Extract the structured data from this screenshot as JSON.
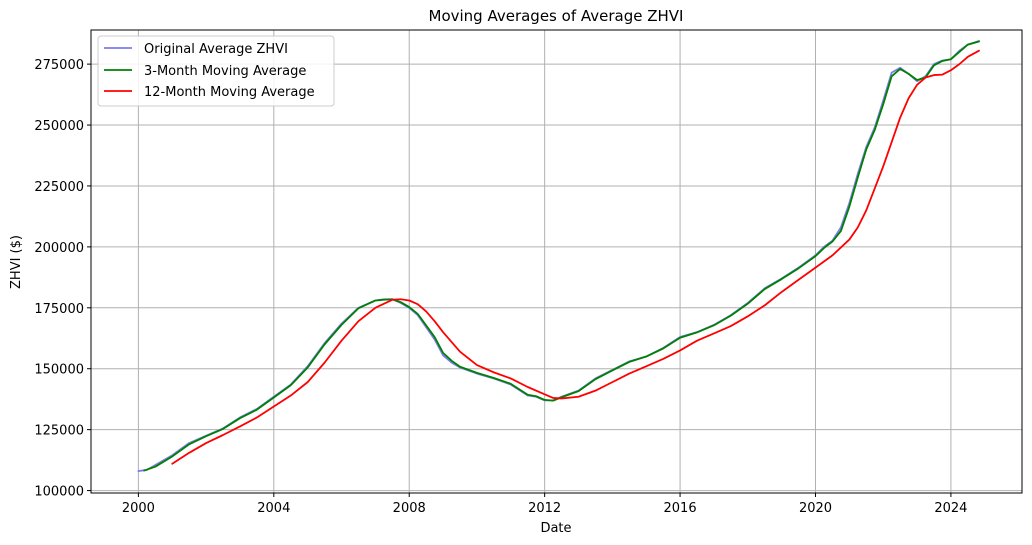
{
  "chart_data": {
    "type": "line",
    "title": "Moving Averages of Average ZHVI",
    "xlabel": "Date",
    "ylabel": "ZHVI ($)",
    "xlim": [
      1998.6,
      2026.1
    ],
    "ylim": [
      99000,
      289000
    ],
    "xticks": [
      2000,
      2004,
      2008,
      2012,
      2016,
      2020,
      2024
    ],
    "yticks": [
      100000,
      125000,
      150000,
      175000,
      200000,
      225000,
      250000,
      275000
    ],
    "grid": true,
    "legend_position": "top-left",
    "series": [
      {
        "name": "Original Average ZHVI",
        "color": "#7b7bef",
        "x": [
          2000.0,
          2000.25,
          2000.5,
          2001.0,
          2001.5,
          2002.0,
          2002.5,
          2003.0,
          2003.5,
          2004.0,
          2004.5,
          2005.0,
          2005.5,
          2006.0,
          2006.5,
          2007.0,
          2007.25,
          2007.5,
          2007.75,
          2008.0,
          2008.25,
          2008.5,
          2008.75,
          2009.0,
          2009.25,
          2009.5,
          2010.0,
          2010.5,
          2011.0,
          2011.5,
          2011.75,
          2012.0,
          2012.25,
          2012.5,
          2013.0,
          2013.5,
          2014.0,
          2014.5,
          2015.0,
          2015.5,
          2016.0,
          2016.5,
          2017.0,
          2017.5,
          2018.0,
          2018.5,
          2019.0,
          2019.5,
          2020.0,
          2020.25,
          2020.5,
          2020.75,
          2021.0,
          2021.25,
          2021.5,
          2021.75,
          2022.0,
          2022.25,
          2022.5,
          2022.75,
          2023.0,
          2023.25,
          2023.5,
          2023.75,
          2024.0,
          2024.25,
          2024.5,
          2024.83
        ],
        "values": [
          108000,
          108500,
          110500,
          114500,
          119500,
          122500,
          125500,
          130000,
          133500,
          138500,
          143500,
          151000,
          160500,
          168500,
          175000,
          178000,
          178500,
          178500,
          177000,
          175000,
          172000,
          167000,
          162000,
          155500,
          152500,
          150500,
          148000,
          146000,
          143500,
          139000,
          138500,
          137000,
          137000,
          138500,
          141000,
          146000,
          149500,
          153000,
          155000,
          158500,
          163000,
          165000,
          168000,
          172000,
          177000,
          183000,
          187000,
          191500,
          196500,
          200000,
          202500,
          208000,
          218000,
          230000,
          241000,
          249000,
          260000,
          271500,
          273500,
          271000,
          268000,
          270000,
          275000,
          276500,
          277000,
          280500,
          283000,
          284500
        ]
      },
      {
        "name": "3-Month Moving Average",
        "color": "#008000",
        "x": [
          2000.17,
          2000.5,
          2001.0,
          2001.5,
          2002.0,
          2002.5,
          2003.0,
          2003.5,
          2004.0,
          2004.5,
          2005.0,
          2005.5,
          2006.0,
          2006.5,
          2007.0,
          2007.25,
          2007.5,
          2007.75,
          2008.0,
          2008.25,
          2008.5,
          2008.75,
          2009.0,
          2009.25,
          2009.5,
          2010.0,
          2010.5,
          2011.0,
          2011.5,
          2011.75,
          2012.0,
          2012.25,
          2012.5,
          2013.0,
          2013.5,
          2014.0,
          2014.5,
          2015.0,
          2015.5,
          2016.0,
          2016.5,
          2017.0,
          2017.5,
          2018.0,
          2018.5,
          2019.0,
          2019.5,
          2020.0,
          2020.25,
          2020.5,
          2020.75,
          2021.0,
          2021.25,
          2021.5,
          2021.75,
          2022.0,
          2022.25,
          2022.5,
          2022.75,
          2023.0,
          2023.25,
          2023.5,
          2023.75,
          2024.0,
          2024.25,
          2024.5,
          2024.83
        ],
        "values": [
          108200,
          109800,
          114000,
          119000,
          122300,
          125300,
          129700,
          133200,
          138200,
          143200,
          150500,
          160000,
          168000,
          174800,
          178000,
          178300,
          178500,
          177300,
          175300,
          172500,
          167800,
          163000,
          156500,
          153300,
          150800,
          148300,
          146200,
          143800,
          139300,
          138700,
          137200,
          136900,
          138300,
          140800,
          145700,
          149300,
          152800,
          155000,
          158300,
          162700,
          164900,
          167800,
          171800,
          176700,
          182700,
          186800,
          191200,
          196200,
          199500,
          202200,
          206500,
          216500,
          228500,
          240000,
          248000,
          258500,
          270000,
          273000,
          271000,
          268500,
          269500,
          274500,
          276300,
          277000,
          280000,
          283000,
          284300
        ]
      },
      {
        "name": "12-Month Moving Average",
        "color": "#ff0000",
        "x": [
          2001.0,
          2001.5,
          2002.0,
          2002.5,
          2003.0,
          2003.5,
          2004.0,
          2004.5,
          2005.0,
          2005.5,
          2006.0,
          2006.5,
          2007.0,
          2007.5,
          2007.75,
          2008.0,
          2008.25,
          2008.5,
          2008.75,
          2009.0,
          2009.5,
          2010.0,
          2010.5,
          2011.0,
          2011.5,
          2012.0,
          2012.25,
          2012.5,
          2013.0,
          2013.5,
          2014.0,
          2014.5,
          2015.0,
          2015.5,
          2016.0,
          2016.5,
          2017.0,
          2017.5,
          2018.0,
          2018.5,
          2019.0,
          2019.5,
          2020.0,
          2020.5,
          2021.0,
          2021.25,
          2021.5,
          2021.75,
          2022.0,
          2022.25,
          2022.5,
          2022.75,
          2023.0,
          2023.25,
          2023.5,
          2023.75,
          2024.0,
          2024.25,
          2024.5,
          2024.83
        ],
        "values": [
          111000,
          115500,
          119500,
          122800,
          126300,
          130000,
          134500,
          139000,
          144500,
          152500,
          161500,
          169500,
          175000,
          178300,
          178500,
          178000,
          176500,
          173500,
          169500,
          165000,
          157000,
          151500,
          148500,
          146000,
          142500,
          139500,
          138000,
          137800,
          138500,
          141000,
          144500,
          148000,
          151000,
          154000,
          157500,
          161500,
          164500,
          167500,
          171500,
          176000,
          181500,
          186500,
          191500,
          196500,
          203000,
          208000,
          215000,
          224000,
          233000,
          243000,
          253000,
          261000,
          266500,
          269500,
          270500,
          270700,
          272500,
          275000,
          278000,
          280500
        ]
      }
    ]
  }
}
